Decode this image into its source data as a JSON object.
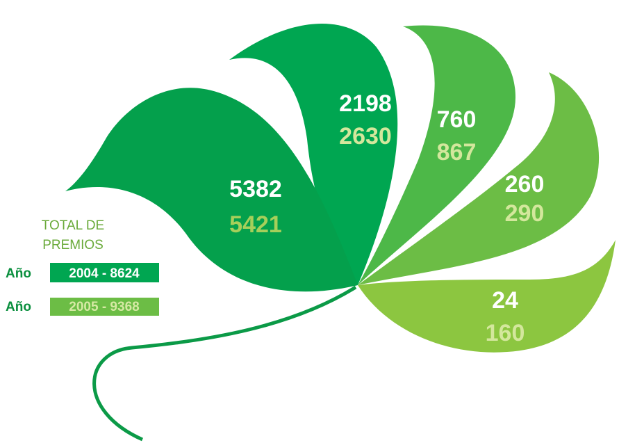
{
  "legend": {
    "title_lines": [
      "TOTAL DE",
      "PREMIOS"
    ],
    "rows": [
      {
        "label": "Año",
        "value": "2004 - 8624"
      },
      {
        "label": "Año",
        "value": "2005 - 9368"
      }
    ]
  },
  "leaves": [
    {
      "values": [
        5382,
        5421
      ]
    },
    {
      "values": [
        2198,
        2630
      ]
    },
    {
      "values": [
        760,
        867
      ]
    },
    {
      "values": [
        260,
        290
      ]
    },
    {
      "values": [
        24,
        160
      ]
    }
  ]
}
